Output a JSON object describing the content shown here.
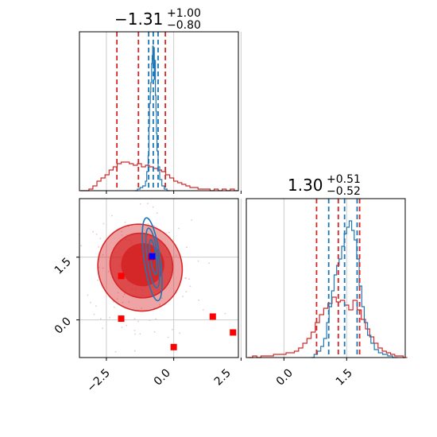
{
  "chart_data": {
    "type": "corner",
    "colors": {
      "red": "#d62728",
      "blue": "#1f77b4",
      "marker_red": "#ff0000",
      "marker_blue": "#0000ff"
    },
    "params": [
      {
        "title_main": "−1.31",
        "title_sup": "+1.00",
        "title_sub": "−0.80"
      },
      {
        "title_main": "1.30",
        "title_sup": "+0.51",
        "title_sub": "−0.52"
      }
    ],
    "axes": {
      "x": {
        "range": [
          -3.5,
          2.4
        ],
        "ticks": [
          -2.5,
          0.0,
          2.5
        ],
        "tick_labels": [
          "−2.5",
          "0.0",
          "2.5"
        ]
      },
      "y": {
        "range": [
          -0.9,
          2.9
        ],
        "ticks": [
          0.0,
          1.5
        ],
        "tick_labels": [
          "0.0",
          "1.5"
        ]
      }
    },
    "grid": true,
    "hist_x": {
      "red_quantiles": [
        -2.11,
        -1.31,
        -0.31
      ],
      "blue_quantiles": [
        -0.93,
        -0.76,
        -0.58
      ],
      "red_hist": [
        [
          -3.45,
          0.0
        ],
        [
          -3.3,
          0.0
        ],
        [
          -3.15,
          0.01
        ],
        [
          -3.0,
          0.03
        ],
        [
          -2.85,
          0.06
        ],
        [
          -2.7,
          0.08
        ],
        [
          -2.55,
          0.1
        ],
        [
          -2.4,
          0.13
        ],
        [
          -2.25,
          0.15
        ],
        [
          -2.1,
          0.17
        ],
        [
          -1.95,
          0.18
        ],
        [
          -1.8,
          0.18
        ],
        [
          -1.65,
          0.17
        ],
        [
          -1.5,
          0.16
        ],
        [
          -1.35,
          0.17
        ],
        [
          -1.2,
          0.15
        ],
        [
          -1.05,
          0.16
        ],
        [
          -0.9,
          0.15
        ],
        [
          -0.75,
          0.14
        ],
        [
          -0.6,
          0.13
        ],
        [
          -0.45,
          0.12
        ],
        [
          -0.3,
          0.1
        ],
        [
          -0.15,
          0.08
        ],
        [
          0.0,
          0.06
        ],
        [
          0.15,
          0.05
        ],
        [
          0.3,
          0.04
        ],
        [
          0.45,
          0.03
        ],
        [
          0.6,
          0.02
        ],
        [
          0.75,
          0.02
        ],
        [
          0.9,
          0.01
        ],
        [
          1.05,
          0.01
        ],
        [
          1.2,
          0.01
        ],
        [
          1.35,
          0.0
        ],
        [
          1.5,
          0.01
        ],
        [
          1.65,
          0.0
        ],
        [
          1.8,
          0.01
        ],
        [
          1.95,
          0.0
        ],
        [
          2.1,
          0.01
        ],
        [
          2.25,
          0.0
        ]
      ],
      "blue_hist": [
        [
          -1.45,
          0.0
        ],
        [
          -1.35,
          0.01
        ],
        [
          -1.25,
          0.02
        ],
        [
          -1.15,
          0.03
        ],
        [
          -1.05,
          0.06
        ],
        [
          -1.0,
          0.12
        ],
        [
          -0.95,
          0.22
        ],
        [
          -0.92,
          0.4
        ],
        [
          -0.9,
          0.55
        ],
        [
          -0.87,
          0.62
        ],
        [
          -0.85,
          0.68
        ],
        [
          -0.82,
          0.8
        ],
        [
          -0.8,
          0.85
        ],
        [
          -0.78,
          0.91
        ],
        [
          -0.76,
          0.78
        ],
        [
          -0.74,
          0.9
        ],
        [
          -0.72,
          0.7
        ],
        [
          -0.7,
          0.82
        ],
        [
          -0.68,
          0.6
        ],
        [
          -0.66,
          0.5
        ],
        [
          -0.64,
          0.36
        ],
        [
          -0.62,
          0.25
        ],
        [
          -0.58,
          0.15
        ],
        [
          -0.52,
          0.07
        ],
        [
          -0.44,
          0.03
        ],
        [
          -0.35,
          0.01
        ],
        [
          -0.25,
          0.0
        ]
      ]
    },
    "hist_y": {
      "red_quantiles": [
        0.78,
        1.3,
        1.81
      ],
      "blue_quantiles": [
        1.07,
        1.45,
        1.75
      ],
      "red_hist": [
        [
          -0.85,
          0.0
        ],
        [
          -0.75,
          0.01
        ],
        [
          -0.65,
          0.0
        ],
        [
          -0.55,
          0.01
        ],
        [
          -0.45,
          0.01
        ],
        [
          -0.35,
          0.01
        ],
        [
          -0.25,
          0.02
        ],
        [
          -0.15,
          0.02
        ],
        [
          -0.05,
          0.02
        ],
        [
          0.05,
          0.03
        ],
        [
          0.15,
          0.03
        ],
        [
          0.25,
          0.04
        ],
        [
          0.35,
          0.06
        ],
        [
          0.45,
          0.09
        ],
        [
          0.55,
          0.12
        ],
        [
          0.65,
          0.16
        ],
        [
          0.75,
          0.22
        ],
        [
          0.85,
          0.27
        ],
        [
          0.95,
          0.31
        ],
        [
          1.05,
          0.34
        ],
        [
          1.15,
          0.38
        ],
        [
          1.25,
          0.35
        ],
        [
          1.35,
          0.36
        ],
        [
          1.45,
          0.33
        ],
        [
          1.55,
          0.3
        ],
        [
          1.65,
          0.36
        ],
        [
          1.75,
          0.3
        ],
        [
          1.85,
          0.24
        ],
        [
          1.95,
          0.18
        ],
        [
          2.05,
          0.13
        ],
        [
          2.15,
          0.09
        ],
        [
          2.25,
          0.06
        ],
        [
          2.35,
          0.04
        ],
        [
          2.45,
          0.03
        ],
        [
          2.55,
          0.02
        ],
        [
          2.65,
          0.01
        ],
        [
          2.75,
          0.01
        ],
        [
          2.85,
          0.0
        ]
      ],
      "blue_hist": [
        [
          0.65,
          0.0
        ],
        [
          0.72,
          0.02
        ],
        [
          0.8,
          0.04
        ],
        [
          0.88,
          0.07
        ],
        [
          0.95,
          0.12
        ],
        [
          1.02,
          0.22
        ],
        [
          1.08,
          0.32
        ],
        [
          1.14,
          0.42
        ],
        [
          1.2,
          0.52
        ],
        [
          1.26,
          0.58
        ],
        [
          1.32,
          0.62
        ],
        [
          1.38,
          0.7
        ],
        [
          1.44,
          0.78
        ],
        [
          1.5,
          0.82
        ],
        [
          1.56,
          0.86
        ],
        [
          1.62,
          0.8
        ],
        [
          1.68,
          0.74
        ],
        [
          1.74,
          0.62
        ],
        [
          1.8,
          0.45
        ],
        [
          1.86,
          0.32
        ],
        [
          1.92,
          0.22
        ],
        [
          2.0,
          0.14
        ],
        [
          2.08,
          0.09
        ],
        [
          2.16,
          0.05
        ],
        [
          2.26,
          0.03
        ],
        [
          2.36,
          0.02
        ],
        [
          2.48,
          0.01
        ],
        [
          2.6,
          0.0
        ]
      ]
    },
    "joint": {
      "red_contours": [
        {
          "cx": -1.25,
          "cy": 1.25,
          "rx": 1.55,
          "ry": 1.05,
          "rot": 28,
          "fill_opacity": 0.42
        },
        {
          "cx": -1.2,
          "cy": 1.3,
          "rx": 1.15,
          "ry": 0.78,
          "rot": 28,
          "fill_opacity": 0.72
        },
        {
          "cx": -1.15,
          "cy": 1.32,
          "rx": 0.78,
          "ry": 0.5,
          "rot": 28,
          "fill_opacity": 1.0
        }
      ],
      "blue_contours": [
        {
          "cx": -0.8,
          "cy": 1.45,
          "rx": 0.3,
          "ry": 1.0,
          "rot": 8
        },
        {
          "cx": -0.78,
          "cy": 1.48,
          "rx": 0.2,
          "ry": 0.72,
          "rot": 8
        },
        {
          "cx": -0.76,
          "cy": 1.5,
          "rx": 0.11,
          "ry": 0.42,
          "rot": 8
        }
      ],
      "red_markers": [
        [
          -1.95,
          1.05
        ],
        [
          -1.95,
          0.03
        ],
        [
          0.0,
          -0.65
        ],
        [
          1.45,
          0.08
        ],
        [
          2.2,
          -0.3
        ],
        [
          -0.85,
          1.5
        ]
      ],
      "blue_markers": [
        [
          -0.8,
          1.52
        ]
      ]
    }
  }
}
